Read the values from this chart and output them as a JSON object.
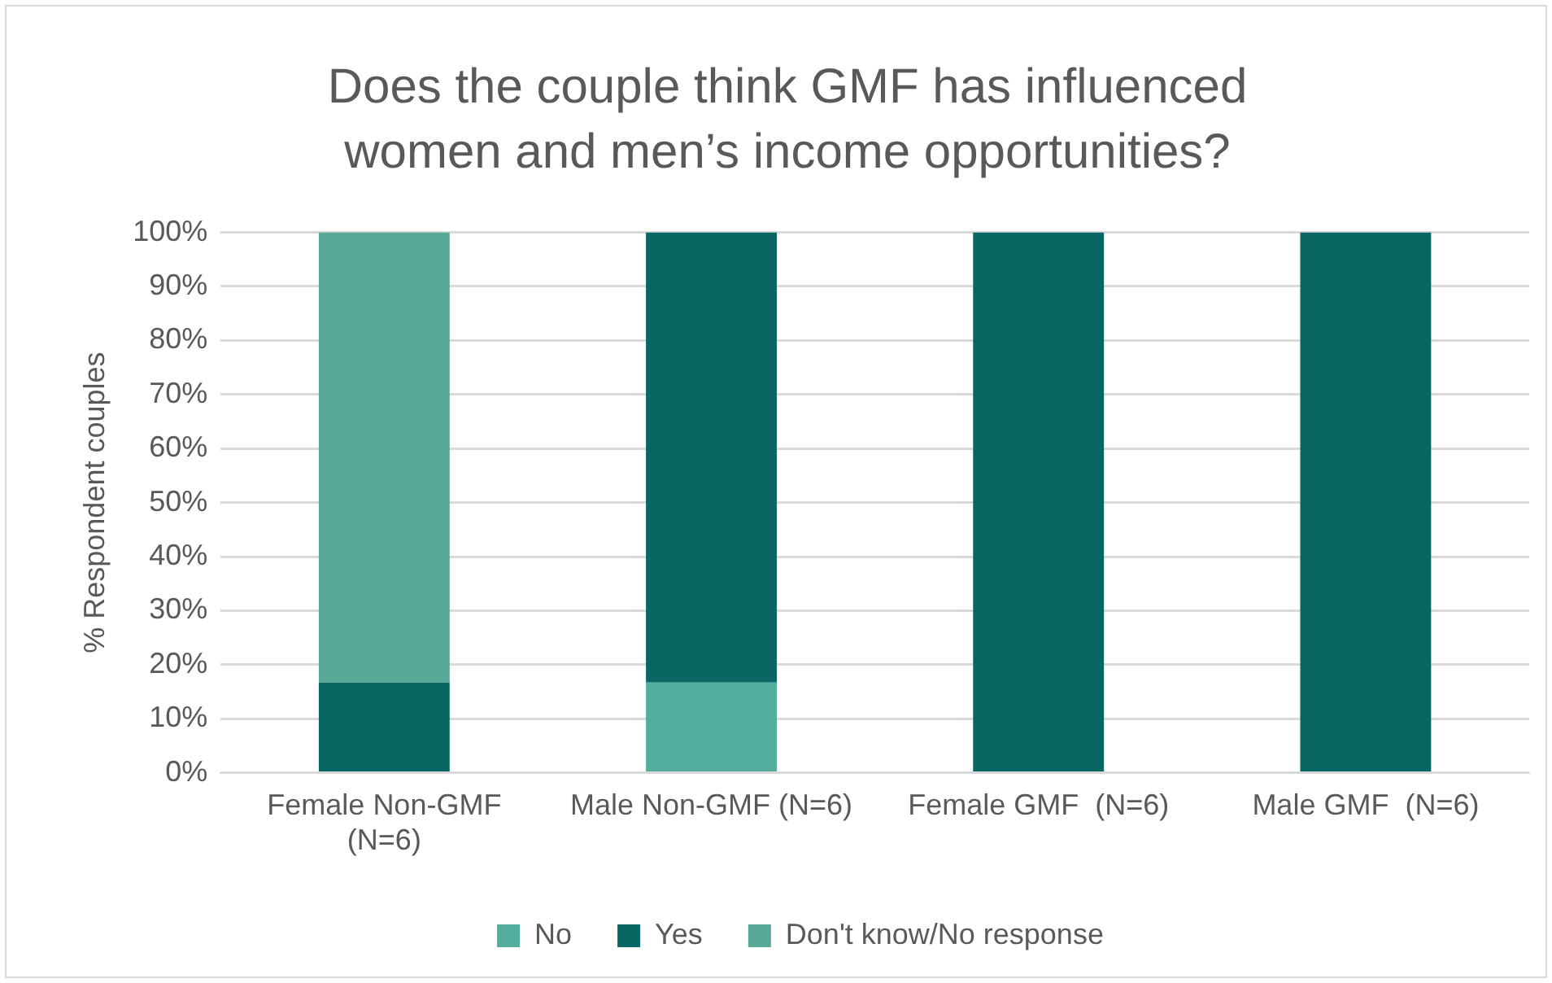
{
  "chart_data": {
    "type": "bar",
    "stacked": true,
    "title": "Does the couple think GMF has influenced women and men’s income opportunities?",
    "ylabel": "% Respondent couples",
    "categories": [
      "Female Non-GMF (N=6)",
      "Male Non-GMF (N=6)",
      "Female GMF  (N=6)",
      "Male GMF  (N=6)"
    ],
    "series": [
      {
        "name": "No",
        "color": "#52ad9c",
        "values": [
          0,
          16.7,
          0,
          0
        ]
      },
      {
        "name": "Yes",
        "color": "#0a6663",
        "values": [
          16.7,
          83.3,
          100,
          100
        ]
      },
      {
        "name": "Don't know/No response",
        "color": "#58a998",
        "values": [
          83.3,
          0,
          0,
          0
        ]
      }
    ],
    "ylim": [
      0,
      100
    ],
    "yticks": [
      {
        "value": 0,
        "label": "0%"
      },
      {
        "value": 10,
        "label": "10%"
      },
      {
        "value": 20,
        "label": "20%"
      },
      {
        "value": 30,
        "label": "30%"
      },
      {
        "value": 40,
        "label": "40%"
      },
      {
        "value": 50,
        "label": "50%"
      },
      {
        "value": 60,
        "label": "60%"
      },
      {
        "value": 70,
        "label": "70%"
      },
      {
        "value": 80,
        "label": "80%"
      },
      {
        "value": 90,
        "label": "90%"
      },
      {
        "value": 100,
        "label": "100%"
      }
    ],
    "grid": "y",
    "legend": "bottom"
  }
}
